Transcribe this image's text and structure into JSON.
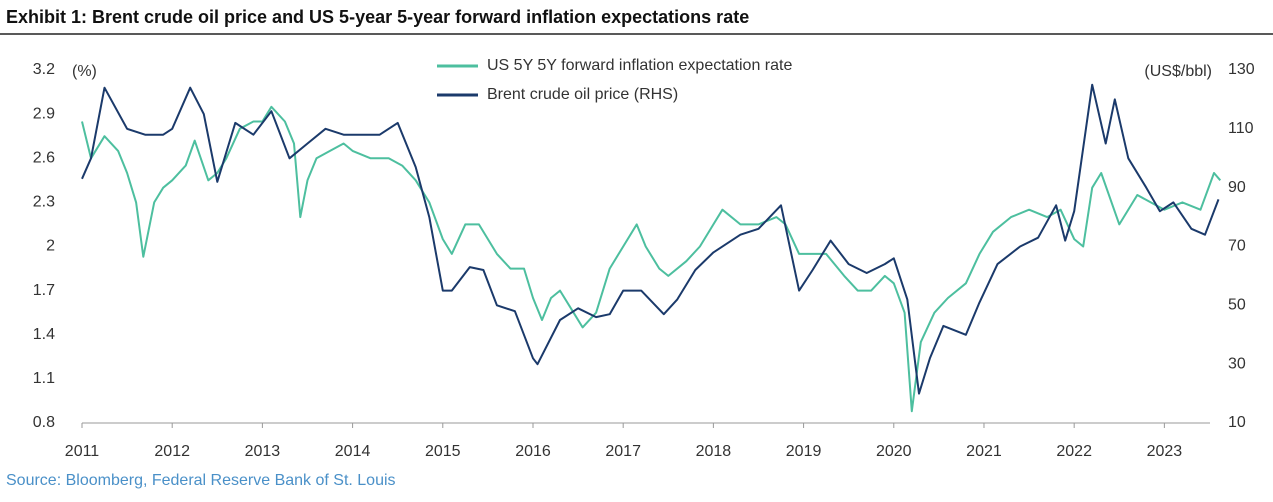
{
  "chart_data": {
    "type": "line",
    "title": "Exhibit 1: Brent crude oil price and US 5-year 5-year forward inflation expectations rate",
    "y_label": "(%)",
    "y2_label": "(US$/bbl)",
    "source": "Source: Bloomberg, Federal Reserve Bank of St. Louis",
    "legend": "top",
    "xlim": [
      2011,
      2023.65
    ],
    "xticks": [
      2011,
      2012,
      2013,
      2014,
      2015,
      2016,
      2017,
      2018,
      2019,
      2020,
      2021,
      2022,
      2023
    ],
    "ylim": [
      0.8,
      3.2
    ],
    "yticks": [
      0.8,
      1.1,
      1.4,
      1.7,
      2.0,
      2.3,
      2.6,
      2.9,
      3.2
    ],
    "y2lim": [
      10,
      130
    ],
    "y2ticks": [
      10,
      30,
      50,
      70,
      90,
      110,
      130
    ],
    "series": [
      {
        "name": "US 5Y 5Y forward inflation expectation rate",
        "color": "#4dbf9f",
        "x": [
          2011.0,
          2011.1,
          2011.25,
          2011.4,
          2011.5,
          2011.6,
          2011.68,
          2011.8,
          2011.9,
          2012.0,
          2012.15,
          2012.25,
          2012.4,
          2012.5,
          2012.6,
          2012.75,
          2012.9,
          2013.0,
          2013.1,
          2013.25,
          2013.35,
          2013.42,
          2013.5,
          2013.6,
          2013.75,
          2013.9,
          2014.0,
          2014.2,
          2014.4,
          2014.55,
          2014.7,
          2014.85,
          2015.0,
          2015.1,
          2015.25,
          2015.4,
          2015.5,
          2015.6,
          2015.75,
          2015.9,
          2016.0,
          2016.1,
          2016.2,
          2016.3,
          2016.45,
          2016.55,
          2016.7,
          2016.85,
          2017.0,
          2017.15,
          2017.25,
          2017.4,
          2017.5,
          2017.7,
          2017.85,
          2018.0,
          2018.1,
          2018.3,
          2018.5,
          2018.7,
          2018.8,
          2018.95,
          2019.1,
          2019.25,
          2019.45,
          2019.6,
          2019.75,
          2019.9,
          2020.0,
          2020.12,
          2020.2,
          2020.3,
          2020.45,
          2020.6,
          2020.8,
          2020.95,
          2021.1,
          2021.3,
          2021.5,
          2021.7,
          2021.85,
          2022.0,
          2022.1,
          2022.2,
          2022.3,
          2022.5,
          2022.7,
          2022.85,
          2023.0,
          2023.2,
          2023.4,
          2023.55,
          2023.62
        ],
        "values": [
          2.85,
          2.6,
          2.75,
          2.65,
          2.5,
          2.3,
          1.93,
          2.3,
          2.4,
          2.45,
          2.55,
          2.72,
          2.45,
          2.5,
          2.6,
          2.8,
          2.85,
          2.85,
          2.95,
          2.85,
          2.7,
          2.2,
          2.45,
          2.6,
          2.65,
          2.7,
          2.65,
          2.6,
          2.6,
          2.55,
          2.45,
          2.3,
          2.05,
          1.95,
          2.15,
          2.15,
          2.05,
          1.95,
          1.85,
          1.85,
          1.65,
          1.5,
          1.65,
          1.7,
          1.55,
          1.45,
          1.55,
          1.85,
          2.0,
          2.15,
          2.0,
          1.85,
          1.8,
          1.9,
          2.0,
          2.15,
          2.25,
          2.15,
          2.15,
          2.2,
          2.15,
          1.95,
          1.95,
          1.95,
          1.8,
          1.7,
          1.7,
          1.8,
          1.75,
          1.55,
          0.88,
          1.35,
          1.55,
          1.65,
          1.75,
          1.95,
          2.1,
          2.2,
          2.25,
          2.2,
          2.25,
          2.05,
          2.0,
          2.4,
          2.5,
          2.15,
          2.35,
          2.3,
          2.25,
          2.3,
          2.25,
          2.5,
          2.45
        ]
      },
      {
        "name": "Brent crude oil price (RHS)",
        "color": "#1b3a6b",
        "axis": "y2",
        "x": [
          2011.0,
          2011.1,
          2011.25,
          2011.5,
          2011.7,
          2011.9,
          2012.0,
          2012.2,
          2012.35,
          2012.5,
          2012.7,
          2012.9,
          2013.1,
          2013.3,
          2013.5,
          2013.7,
          2013.9,
          2014.0,
          2014.3,
          2014.5,
          2014.7,
          2014.85,
          2015.0,
          2015.1,
          2015.3,
          2015.45,
          2015.6,
          2015.8,
          2016.0,
          2016.05,
          2016.3,
          2016.5,
          2016.7,
          2016.85,
          2017.0,
          2017.2,
          2017.45,
          2017.6,
          2017.8,
          2018.0,
          2018.3,
          2018.5,
          2018.75,
          2018.95,
          2019.1,
          2019.3,
          2019.5,
          2019.7,
          2019.9,
          2020.0,
          2020.15,
          2020.28,
          2020.4,
          2020.55,
          2020.8,
          2020.95,
          2021.15,
          2021.4,
          2021.6,
          2021.8,
          2021.9,
          2022.0,
          2022.2,
          2022.35,
          2022.45,
          2022.6,
          2022.8,
          2022.95,
          2023.1,
          2023.3,
          2023.45,
          2023.6
        ],
        "values": [
          93,
          100,
          124,
          110,
          108,
          108,
          110,
          124,
          115,
          92,
          112,
          108,
          116,
          100,
          105,
          110,
          108,
          108,
          108,
          112,
          97,
          80,
          55,
          55,
          63,
          62,
          50,
          48,
          32,
          30,
          45,
          49,
          46,
          47,
          55,
          55,
          47,
          52,
          62,
          68,
          74,
          76,
          84,
          55,
          62,
          72,
          64,
          61,
          64,
          66,
          52,
          20,
          32,
          43,
          40,
          51,
          64,
          70,
          73,
          84,
          72,
          82,
          125,
          105,
          120,
          100,
          90,
          82,
          85,
          76,
          74,
          86
        ]
      }
    ]
  }
}
